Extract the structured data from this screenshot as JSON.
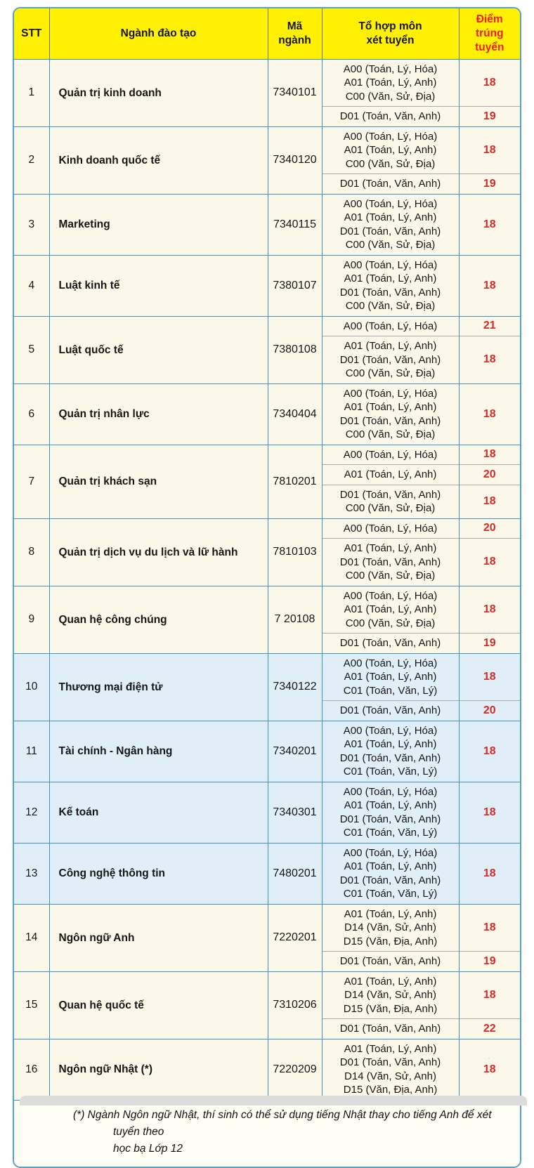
{
  "table": {
    "headers": {
      "stt": "STT",
      "major": "Ngành đào tạo",
      "code": "Mã ngành",
      "combo": "Tổ hợp môn\nxét tuyển",
      "score": "Điểm\ntrúng tuyển"
    },
    "rows": [
      {
        "stt": "1",
        "major": "Quản trị kinh doanh",
        "code": "7340101",
        "theme": "cream",
        "groups": [
          {
            "combos": [
              "A00 (Toán, Lý, Hóa)",
              "A01 (Toán, Lý, Anh)",
              "C00 (Văn, Sử, Địa)"
            ],
            "score": "18"
          },
          {
            "combos": [
              "D01 (Toán, Văn, Anh)"
            ],
            "score": "19"
          }
        ]
      },
      {
        "stt": "2",
        "major": "Kinh doanh quốc tế",
        "code": "7340120",
        "theme": "cream",
        "groups": [
          {
            "combos": [
              "A00 (Toán, Lý, Hóa)",
              "A01 (Toán, Lý, Anh)",
              "C00 (Văn, Sử, Địa)"
            ],
            "score": "18"
          },
          {
            "combos": [
              "D01 (Toán, Văn, Anh)"
            ],
            "score": "19"
          }
        ]
      },
      {
        "stt": "3",
        "major": "Marketing",
        "code": "7340115",
        "theme": "cream",
        "groups": [
          {
            "combos": [
              "A00 (Toán, Lý, Hóa)",
              "A01 (Toán, Lý, Anh)",
              "D01 (Toán, Văn, Anh)",
              "C00 (Văn, Sử, Địa)"
            ],
            "score": "18"
          }
        ]
      },
      {
        "stt": "4",
        "major": "Luật kinh tế",
        "code": "7380107",
        "theme": "cream",
        "groups": [
          {
            "combos": [
              "A00 (Toán, Lý, Hóa)",
              "A01 (Toán, Lý, Anh)",
              "D01 (Toán, Văn, Anh)",
              "C00 (Văn, Sử, Địa)"
            ],
            "score": "18"
          }
        ]
      },
      {
        "stt": "5",
        "major": "Luật quốc tế",
        "code": "7380108",
        "theme": "cream",
        "groups": [
          {
            "combos": [
              "A00 (Toán, Lý, Hóa)"
            ],
            "score": "21"
          },
          {
            "combos": [
              "A01 (Toán, Lý, Anh)",
              "D01 (Toán, Văn, Anh)",
              "C00 (Văn, Sử, Địa)"
            ],
            "score": "18"
          }
        ]
      },
      {
        "stt": "6",
        "major": "Quản trị nhân lực",
        "code": "7340404",
        "theme": "cream",
        "groups": [
          {
            "combos": [
              "A00 (Toán, Lý, Hóa)",
              "A01 (Toán, Lý, Anh)",
              "D01 (Toán, Văn, Anh)",
              "C00 (Văn, Sử, Địa)"
            ],
            "score": "18"
          }
        ]
      },
      {
        "stt": "7",
        "major": "Quản trị khách sạn",
        "code": "7810201",
        "theme": "cream",
        "groups": [
          {
            "combos": [
              "A00 (Toán, Lý, Hóa)"
            ],
            "score": "18"
          },
          {
            "combos": [
              "A01 (Toán, Lý, Anh)"
            ],
            "score": "20"
          },
          {
            "combos": [
              "D01 (Toán, Văn, Anh)",
              "C00 (Văn, Sử, Địa)"
            ],
            "score": "18"
          }
        ]
      },
      {
        "stt": "8",
        "major": "Quản trị dịch vụ du lịch và lữ hành",
        "code": "7810103",
        "theme": "cream",
        "groups": [
          {
            "combos": [
              "A00 (Toán, Lý, Hóa)"
            ],
            "score": "20"
          },
          {
            "combos": [
              "A01 (Toán, Lý, Anh)",
              "D01 (Toán, Văn, Anh)",
              "C00 (Văn, Sử, Địa)"
            ],
            "score": "18"
          }
        ]
      },
      {
        "stt": "9",
        "major": "Quan hệ công chúng",
        "code": "7 20108",
        "theme": "cream",
        "groups": [
          {
            "combos": [
              "A00 (Toán, Lý, Hóa)",
              "A01 (Toán, Lý, Anh)",
              "C00 (Văn, Sử, Địa)"
            ],
            "score": "18"
          },
          {
            "combos": [
              "D01 (Toán, Văn, Anh)"
            ],
            "score": "19"
          }
        ]
      },
      {
        "stt": "10",
        "major": "Thương mại điện tử",
        "code": "7340122",
        "theme": "blue",
        "groups": [
          {
            "combos": [
              "A00 (Toán, Lý, Hóa)",
              "A01 (Toán, Lý, Anh)",
              "C01 (Toán, Văn, Lý)"
            ],
            "score": "18"
          },
          {
            "combos": [
              "D01 (Toán, Văn, Anh)"
            ],
            "score": "20"
          }
        ]
      },
      {
        "stt": "11",
        "major": "Tài chính - Ngân hàng",
        "code": "7340201",
        "theme": "blue",
        "groups": [
          {
            "combos": [
              "A00 (Toán, Lý, Hóa)",
              "A01 (Toán, Lý, Anh)",
              "D01 (Toán, Văn, Anh)",
              "C01 (Toán, Văn, Lý)"
            ],
            "score": "18"
          }
        ]
      },
      {
        "stt": "12",
        "major": "Kế toán",
        "code": "7340301",
        "theme": "blue",
        "groups": [
          {
            "combos": [
              "A00 (Toán, Lý, Hóa)",
              "A01 (Toán, Lý, Anh)",
              "D01 (Toán, Văn, Anh)",
              "C01 (Toán, Văn, Lý)"
            ],
            "score": "18"
          }
        ]
      },
      {
        "stt": "13",
        "major": "Công nghệ thông tin",
        "code": "7480201",
        "theme": "blue",
        "groups": [
          {
            "combos": [
              "A00 (Toán, Lý, Hóa)",
              "A01 (Toán, Lý, Anh)",
              "D01 (Toán, Văn, Anh)",
              "C01 (Toán, Văn, Lý)"
            ],
            "score": "18"
          }
        ]
      },
      {
        "stt": "14",
        "major": "Ngôn ngữ Anh",
        "code": "7220201",
        "theme": "cream",
        "groups": [
          {
            "combos": [
              "A01 (Toán, Lý, Anh)",
              "D14 (Văn, Sử, Anh)",
              "D15 (Văn, Địa, Anh)"
            ],
            "score": "18"
          },
          {
            "combos": [
              "D01 (Toán, Văn, Anh)"
            ],
            "score": "19"
          }
        ]
      },
      {
        "stt": "15",
        "major": "Quan hệ quốc tế",
        "code": "7310206",
        "theme": "cream",
        "groups": [
          {
            "combos": [
              "A01 (Toán, Lý, Anh)",
              "D14 (Văn, Sử, Anh)",
              "D15 (Văn, Địa, Anh)"
            ],
            "score": "18"
          },
          {
            "combos": [
              "D01 (Toán, Văn, Anh)"
            ],
            "score": "22"
          }
        ]
      },
      {
        "stt": "16",
        "major": "Ngôn ngữ Nhật (*)",
        "code": "7220209",
        "theme": "cream",
        "groups": [
          {
            "combos": [
              "A01 (Toán, Lý, Anh)",
              "D01 (Toán, Văn, Anh)",
              "D14 (Văn, Sử, Anh)",
              "D15 (Văn, Địa, Anh)"
            ],
            "score": "18"
          }
        ]
      }
    ],
    "footnote": "(*) Ngành Ngôn ngữ Nhật, thí sinh có thể sử dụng tiếng Nhật thay cho tiếng Anh để xét tuyển theo\nhọc bạ Lớp 12"
  },
  "colors": {
    "header_bg": "#FFF101",
    "header_score_text": "#EE1F26",
    "score_text": "#D42A28",
    "grid_border": "#3F93BF",
    "row_cream": "#FCF8E9",
    "row_blue": "#DFEEF7"
  }
}
